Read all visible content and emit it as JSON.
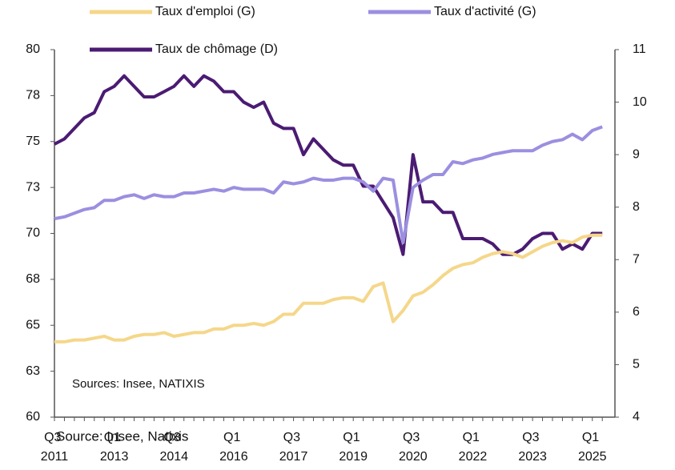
{
  "chart_data": {
    "type": "line",
    "categories": [
      "Q3 2011",
      null,
      null,
      null,
      null,
      null,
      "Q1 2013",
      null,
      null,
      null,
      null,
      null,
      "Q3 2014",
      null,
      null,
      null,
      null,
      null,
      "Q1 2016",
      null,
      null,
      null,
      null,
      null,
      "Q3 2017",
      null,
      null,
      null,
      null,
      null,
      "Q1 2019",
      null,
      null,
      null,
      null,
      null,
      "Q3 2020",
      null,
      null,
      null,
      null,
      null,
      "Q1 2022",
      null,
      null,
      null,
      null,
      null,
      "Q3 2023",
      null,
      null,
      null,
      null,
      null,
      "Q1 2025",
      null
    ],
    "series": [
      {
        "name": "Taux d'emploi (G)",
        "color": "#f5d78a",
        "values": [
          64.1,
          64.1,
          64.2,
          64.2,
          64.3,
          64.4,
          64.2,
          64.2,
          64.4,
          64.5,
          64.5,
          64.6,
          64.4,
          64.5,
          64.6,
          64.6,
          64.8,
          64.8,
          65.0,
          65.0,
          65.1,
          65.0,
          65.2,
          65.6,
          65.6,
          66.2,
          66.2,
          66.2,
          66.4,
          66.5,
          66.5,
          66.3,
          67.1,
          67.3,
          65.2,
          65.8,
          66.6,
          66.8,
          67.2,
          67.7,
          68.1,
          68.3,
          68.4,
          68.7,
          68.9,
          69.0,
          68.9,
          68.7,
          69.0,
          69.3,
          69.5,
          69.6,
          69.5,
          69.8,
          69.9,
          69.9
        ]
      },
      {
        "name": "Taux d'activité (G)",
        "color": "#9b8fe0",
        "values": [
          70.8,
          70.9,
          71.1,
          71.3,
          71.4,
          71.8,
          71.8,
          72.0,
          72.1,
          71.9,
          72.1,
          72.0,
          72.0,
          72.2,
          72.2,
          72.3,
          72.4,
          72.3,
          72.5,
          72.4,
          72.4,
          72.4,
          72.2,
          72.8,
          72.7,
          72.8,
          73.0,
          72.9,
          72.9,
          73.0,
          73.0,
          72.8,
          72.3,
          73.0,
          72.9,
          69.5,
          72.5,
          72.9,
          73.2,
          73.2,
          73.9,
          73.8,
          74.0,
          74.1,
          74.3,
          74.4,
          74.5,
          74.5,
          74.5,
          74.8,
          75.0,
          75.1,
          75.4,
          75.1,
          75.6,
          75.8
        ]
      },
      {
        "name": "Taux de chômage (D)",
        "color": "#4b1b73",
        "axis": "y2",
        "values": [
          9.2,
          9.3,
          9.5,
          9.7,
          9.8,
          10.2,
          10.3,
          10.5,
          10.3,
          10.1,
          10.1,
          10.2,
          10.3,
          10.5,
          10.3,
          10.5,
          10.4,
          10.2,
          10.2,
          10.0,
          9.9,
          10.0,
          9.6,
          9.5,
          9.5,
          9.0,
          9.3,
          9.1,
          8.9,
          8.8,
          8.8,
          8.4,
          8.4,
          8.1,
          7.8,
          7.1,
          9.0,
          8.1,
          8.1,
          7.9,
          7.9,
          7.4,
          7.4,
          7.4,
          7.3,
          7.1,
          7.1,
          7.2,
          7.4,
          7.5,
          7.5,
          7.2,
          7.3,
          7.2,
          7.5,
          7.5
        ]
      }
    ],
    "ylim": [
      60,
      80
    ],
    "yticks": [
      60,
      {
        "value": 62.5,
        "label": "63"
      },
      65,
      {
        "value": 67.5,
        "label": "68"
      },
      70,
      {
        "value": 72.5,
        "label": "73"
      },
      75,
      {
        "value": 77.5,
        "label": "78"
      },
      80
    ],
    "y2lim": [
      4,
      11
    ],
    "y2ticks": [
      4,
      5,
      6,
      7,
      8,
      9,
      10,
      11
    ],
    "annotations": [
      "Sources:  Insee, NATIXIS",
      "Source: Insee, Natixis"
    ]
  }
}
